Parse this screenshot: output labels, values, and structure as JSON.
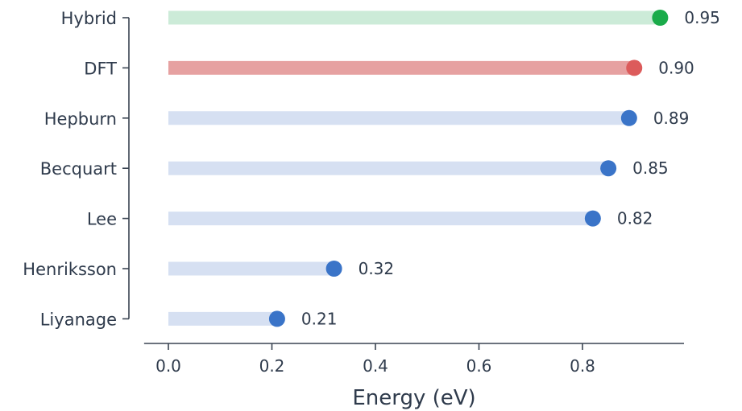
{
  "chart_data": {
    "type": "lollipop",
    "xlabel": "Energy (eV)",
    "ylabel": "",
    "title": "",
    "xlim": [
      -0.05,
      1.0
    ],
    "xticks": [
      "0.0",
      "0.2",
      "0.4",
      "0.6",
      "0.8"
    ],
    "categories": [
      "Hybrid",
      "DFT",
      "Hepburn",
      "Becquart",
      "Lee",
      "Henriksson",
      "Liyanage"
    ],
    "values": [
      0.95,
      0.9,
      0.89,
      0.85,
      0.82,
      0.32,
      0.21
    ],
    "value_labels": [
      "0.95",
      "0.90",
      "0.89",
      "0.85",
      "0.82",
      "0.32",
      "0.21"
    ],
    "colors": {
      "Hybrid": {
        "stem": "#ccebd8",
        "dot": "#1aab4a"
      },
      "DFT": {
        "stem": "#e6a1a1",
        "dot": "#dc5b5b"
      },
      "default": {
        "stem": "#d6e0f2",
        "dot": "#3a74c8"
      }
    },
    "grid": false
  }
}
